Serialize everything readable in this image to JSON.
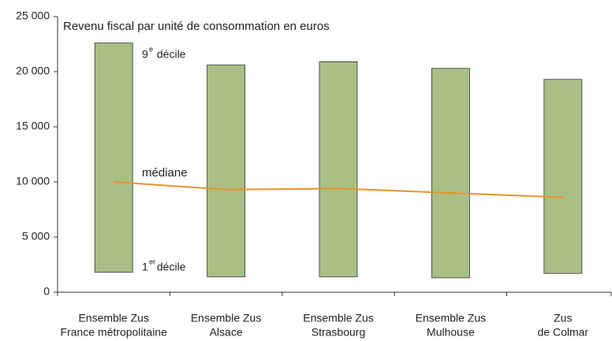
{
  "chart_data": {
    "type": "range_bar",
    "title": "Revenu fiscal par unité de consommation en euros",
    "categories": [
      [
        "Ensemble Zus",
        "France métropolitaine"
      ],
      [
        "Ensemble Zus",
        "Alsace"
      ],
      [
        "Ensemble Zus",
        "Strasbourg"
      ],
      [
        "Ensemble Zus",
        "Mulhouse"
      ],
      [
        "Zus",
        "de Colmar"
      ]
    ],
    "decile1": {
      "label": [
        "1",
        "er",
        " décile"
      ],
      "values": [
        1800,
        1400,
        1400,
        1300,
        1700
      ]
    },
    "decile9": {
      "label": [
        "9",
        "e",
        " décile"
      ],
      "values": [
        22600,
        20600,
        20900,
        20300,
        19300
      ]
    },
    "median": {
      "label": "médiane",
      "values": [
        10000,
        9300,
        9400,
        9000,
        8600
      ],
      "color": "#e8912c"
    },
    "color": "#a9bf86",
    "ylim": [
      0,
      25000
    ],
    "yticks": [
      0,
      {
        "value": 5000,
        "label": "5 000"
      },
      {
        "value": 10000,
        "label": "10 000"
      },
      {
        "value": 15000,
        "label": "15 000"
      },
      {
        "value": 20000,
        "label": "20 000"
      },
      {
        "value": 25000,
        "label": "25 000"
      }
    ],
    "grid": false
  }
}
